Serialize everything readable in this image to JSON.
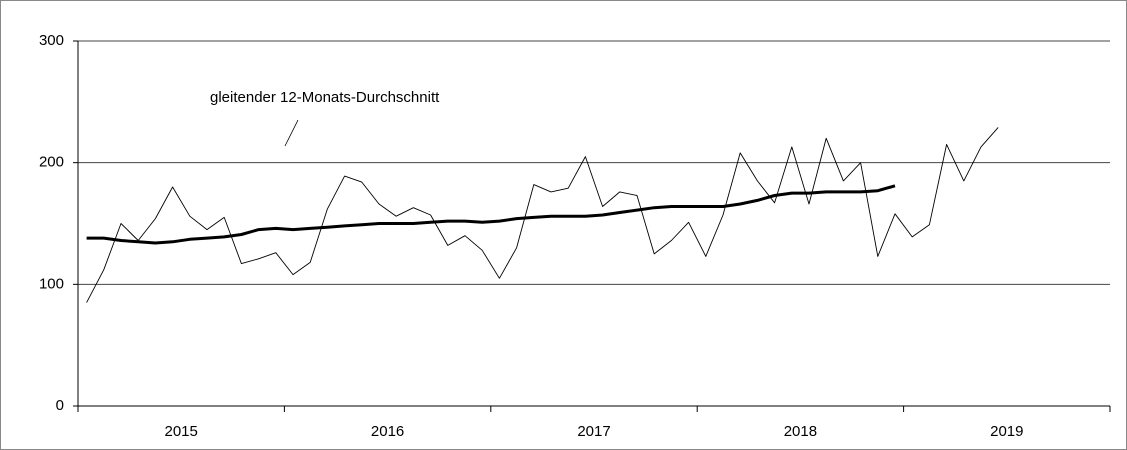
{
  "chart_data": {
    "type": "line",
    "categories": [
      null,
      null,
      null,
      null,
      null,
      null,
      "2015",
      null,
      null,
      null,
      null,
      null,
      null,
      null,
      null,
      null,
      null,
      null,
      "2016",
      null,
      null,
      null,
      null,
      null,
      null,
      null,
      null,
      null,
      null,
      null,
      "2017",
      null,
      null,
      null,
      null,
      null,
      null,
      null,
      null,
      null,
      null,
      null,
      "2018",
      null,
      null,
      null,
      null,
      null,
      null,
      null,
      null,
      null,
      null,
      null,
      "2019",
      null,
      null,
      null,
      null,
      null
    ],
    "series": [
      {
        "color": "#000000",
        "values": [
          85,
          112,
          150,
          136,
          154,
          180,
          156,
          145,
          155,
          117,
          121,
          126,
          108,
          118,
          162,
          189,
          184,
          166,
          156,
          163,
          157,
          132,
          140,
          128,
          105,
          130,
          182,
          176,
          179,
          205,
          164,
          176,
          173,
          125,
          136,
          151,
          123,
          157,
          208,
          185,
          167,
          213,
          166,
          220,
          185,
          200,
          123,
          158,
          139,
          149,
          215,
          185,
          213,
          229,
          null,
          null,
          null,
          null,
          null,
          null
        ]
      },
      {
        "color": "#000000",
        "values": [
          138,
          138,
          136,
          135,
          134,
          135,
          137,
          138,
          139,
          141,
          145,
          146,
          145,
          146,
          147,
          148,
          149,
          150,
          150,
          150,
          151,
          152,
          152,
          151,
          152,
          154,
          155,
          156,
          156,
          156,
          157,
          159,
          161,
          163,
          164,
          164,
          164,
          164,
          166,
          169,
          173,
          175,
          175,
          176,
          176,
          176,
          177,
          181,
          null,
          null,
          null,
          null,
          null,
          null,
          null,
          null,
          null,
          null,
          null,
          null
        ]
      }
    ],
    "annotations": [
      {
        "text": "gleitender 12-Monats-Durchschnitt"
      }
    ],
    "ylim": [
      0,
      300
    ],
    "yticks": [
      0,
      100,
      200,
      300
    ],
    "grid": true
  }
}
